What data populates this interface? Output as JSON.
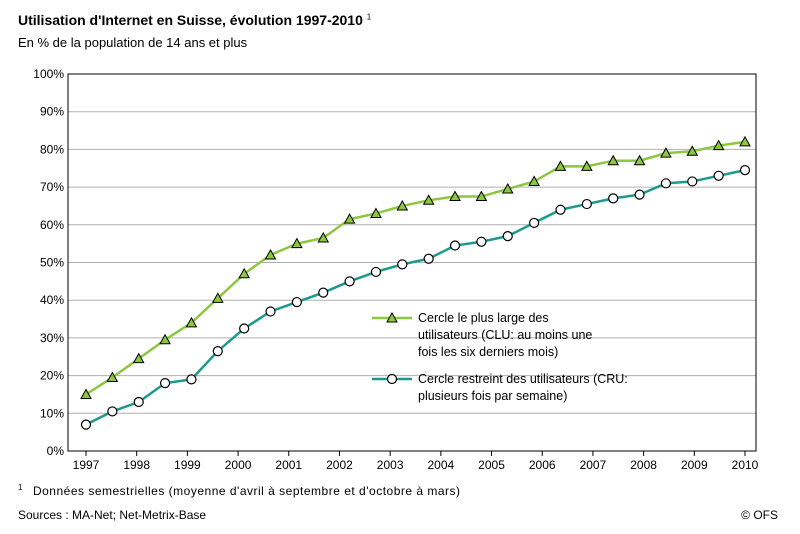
{
  "title": "Utilisation d'Internet en Suisse, évolution 1997-2010",
  "title_note_marker": "1",
  "subtitle": "En % de la population de 14 ans et plus",
  "footnote_marker": "1",
  "footnote": "Données semestrielles (moyenne d'avril à septembre et d'octobre à mars)",
  "sources": "Sources : MA-Net; Net-Metrix-Base",
  "copyright": "© OFS",
  "chart_data": {
    "type": "line",
    "title": "Utilisation d'Internet en Suisse, évolution 1997-2010",
    "subtitle": "En % de la population de 14 ans et plus",
    "xlabel": "",
    "ylabel": "",
    "ylim": [
      0,
      100
    ],
    "yticks": [
      "0%",
      "10%",
      "20%",
      "30%",
      "40%",
      "50%",
      "60%",
      "70%",
      "80%",
      "90%",
      "100%"
    ],
    "xticks": [
      "1997",
      "1998",
      "1999",
      "2000",
      "2001",
      "2002",
      "2003",
      "2004",
      "2005",
      "2006",
      "2007",
      "2008",
      "2009",
      "2010"
    ],
    "grid": "horizontal",
    "legend_position": "center-right",
    "colors": {
      "clu": "#8dc63f",
      "cru": "#1a9a8a"
    },
    "series": [
      {
        "name": "Cercle le plus large des utilisateurs (CLU: au moins une fois les six derniers mois)",
        "legend_lines": [
          "Cercle le plus large des",
          "utilisateurs (CLU: au moins une",
          "fois les six derniers mois)"
        ],
        "marker": "triangle",
        "values": [
          15,
          19.5,
          24.5,
          29.5,
          34,
          40.5,
          47,
          52,
          55,
          56.5,
          61.5,
          63,
          65,
          66.5,
          67.5,
          67.5,
          69.5,
          71.5,
          75.5,
          75.5,
          77,
          77,
          79,
          79.5,
          81,
          82
        ]
      },
      {
        "name": "Cercle restreint des utilisateurs (CRU: plusieurs fois par semaine)",
        "legend_lines": [
          "Cercle restreint des utilisateurs (CRU:",
          "plusieurs fois par semaine)"
        ],
        "marker": "circle",
        "values": [
          7,
          10.5,
          13,
          18,
          19,
          26.5,
          32.5,
          37,
          39.5,
          42,
          45,
          47.5,
          49.5,
          51,
          54.5,
          55.5,
          57,
          60.5,
          64,
          65.5,
          67,
          68,
          71,
          71.5,
          73,
          74.5
        ]
      }
    ]
  }
}
